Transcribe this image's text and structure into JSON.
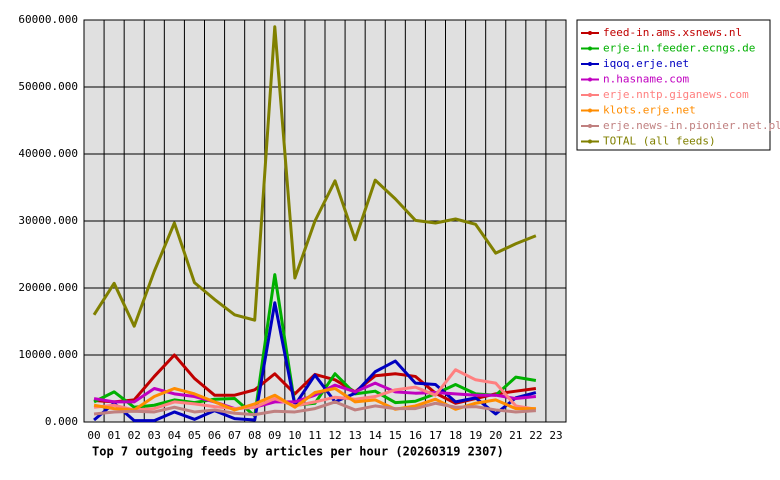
{
  "chart_data": {
    "type": "line",
    "title": "Top 7 outgoing feeds by articles per hour (20260319 2307)",
    "categories": [
      "00",
      "01",
      "02",
      "03",
      "04",
      "05",
      "06",
      "07",
      "08",
      "09",
      "10",
      "11",
      "12",
      "13",
      "14",
      "15",
      "16",
      "17",
      "18",
      "19",
      "20",
      "21",
      "22",
      "23"
    ],
    "ylim": [
      0,
      60000
    ],
    "yticks": [
      {
        "value": 0,
        "label": "0.000"
      },
      {
        "value": 10000,
        "label": "10000.000"
      },
      {
        "value": 20000,
        "label": "20000.000"
      },
      {
        "value": 30000,
        "label": "30000.000"
      },
      {
        "value": 40000,
        "label": "40000.000"
      },
      {
        "value": 50000,
        "label": "50000.000"
      },
      {
        "value": 60000,
        "label": "60000.000"
      }
    ],
    "grid": true,
    "legend": "right",
    "series": [
      {
        "name": "feed-in.ams.xsnews.nl",
        "color": "#c00000",
        "values": [
          3200,
          3000,
          3300,
          6800,
          10000,
          6500,
          4000,
          4000,
          4800,
          7200,
          4200,
          7100,
          6300,
          4500,
          6900,
          7200,
          6800,
          4300,
          2800,
          3500,
          4200,
          4600,
          5000,
          null
        ]
      },
      {
        "name": "erje-in.feeder.ecngs.de",
        "color": "#00b000",
        "values": [
          3000,
          4500,
          2200,
          2500,
          3300,
          2900,
          3400,
          3500,
          900,
          22000,
          2500,
          2800,
          7200,
          4200,
          4600,
          2900,
          3100,
          4200,
          5600,
          4200,
          4000,
          6700,
          6200,
          null
        ]
      },
      {
        "name": "iqoq.erje.net",
        "color": "#0000c0",
        "values": [
          300,
          2800,
          200,
          200,
          1500,
          400,
          1700,
          500,
          300,
          17800,
          2500,
          7000,
          3000,
          4300,
          7500,
          9100,
          5800,
          5600,
          3000,
          3600,
          1200,
          3600,
          4400,
          null
        ]
      },
      {
        "name": "n.hasname.com",
        "color": "#c000c0",
        "values": [
          3500,
          3000,
          3000,
          5000,
          4200,
          3800,
          3000,
          2000,
          2200,
          3000,
          3000,
          4000,
          5500,
          4500,
          5800,
          4500,
          4300,
          4400,
          4200,
          4000,
          4000,
          3500,
          3800,
          null
        ]
      },
      {
        "name": "erje.nntp.giganews.com",
        "color": "#ff8080",
        "values": [
          2200,
          2500,
          1800,
          2000,
          3000,
          2700,
          2300,
          2000,
          2200,
          3500,
          2400,
          3000,
          3700,
          3400,
          3800,
          4800,
          5200,
          4000,
          7800,
          6300,
          5800,
          2400,
          1900,
          null
        ]
      },
      {
        "name": "klots.erje.net",
        "color": "#ff8c00",
        "values": [
          2500,
          2000,
          1800,
          3800,
          5000,
          4200,
          3000,
          1800,
          2700,
          4000,
          2200,
          4400,
          5000,
          3000,
          3300,
          1900,
          2400,
          3400,
          1900,
          2800,
          3300,
          2000,
          2000,
          null
        ]
      },
      {
        "name": "erje.news-in.pionier.net.pl",
        "color": "#c08080",
        "values": [
          1200,
          1500,
          1600,
          1500,
          2200,
          1500,
          1800,
          1300,
          1100,
          1600,
          1500,
          2000,
          3000,
          1800,
          2400,
          2000,
          2000,
          2800,
          2200,
          2300,
          1800,
          1500,
          1700,
          null
        ]
      },
      {
        "name": "TOTAL (all feeds)",
        "color": "#808000",
        "values": [
          16000,
          20700,
          14300,
          22500,
          29700,
          20800,
          18300,
          16000,
          15200,
          59000,
          21500,
          30000,
          36000,
          27200,
          36100,
          33300,
          30100,
          29700,
          30300,
          29500,
          25200,
          26600,
          27800,
          null
        ]
      }
    ]
  }
}
